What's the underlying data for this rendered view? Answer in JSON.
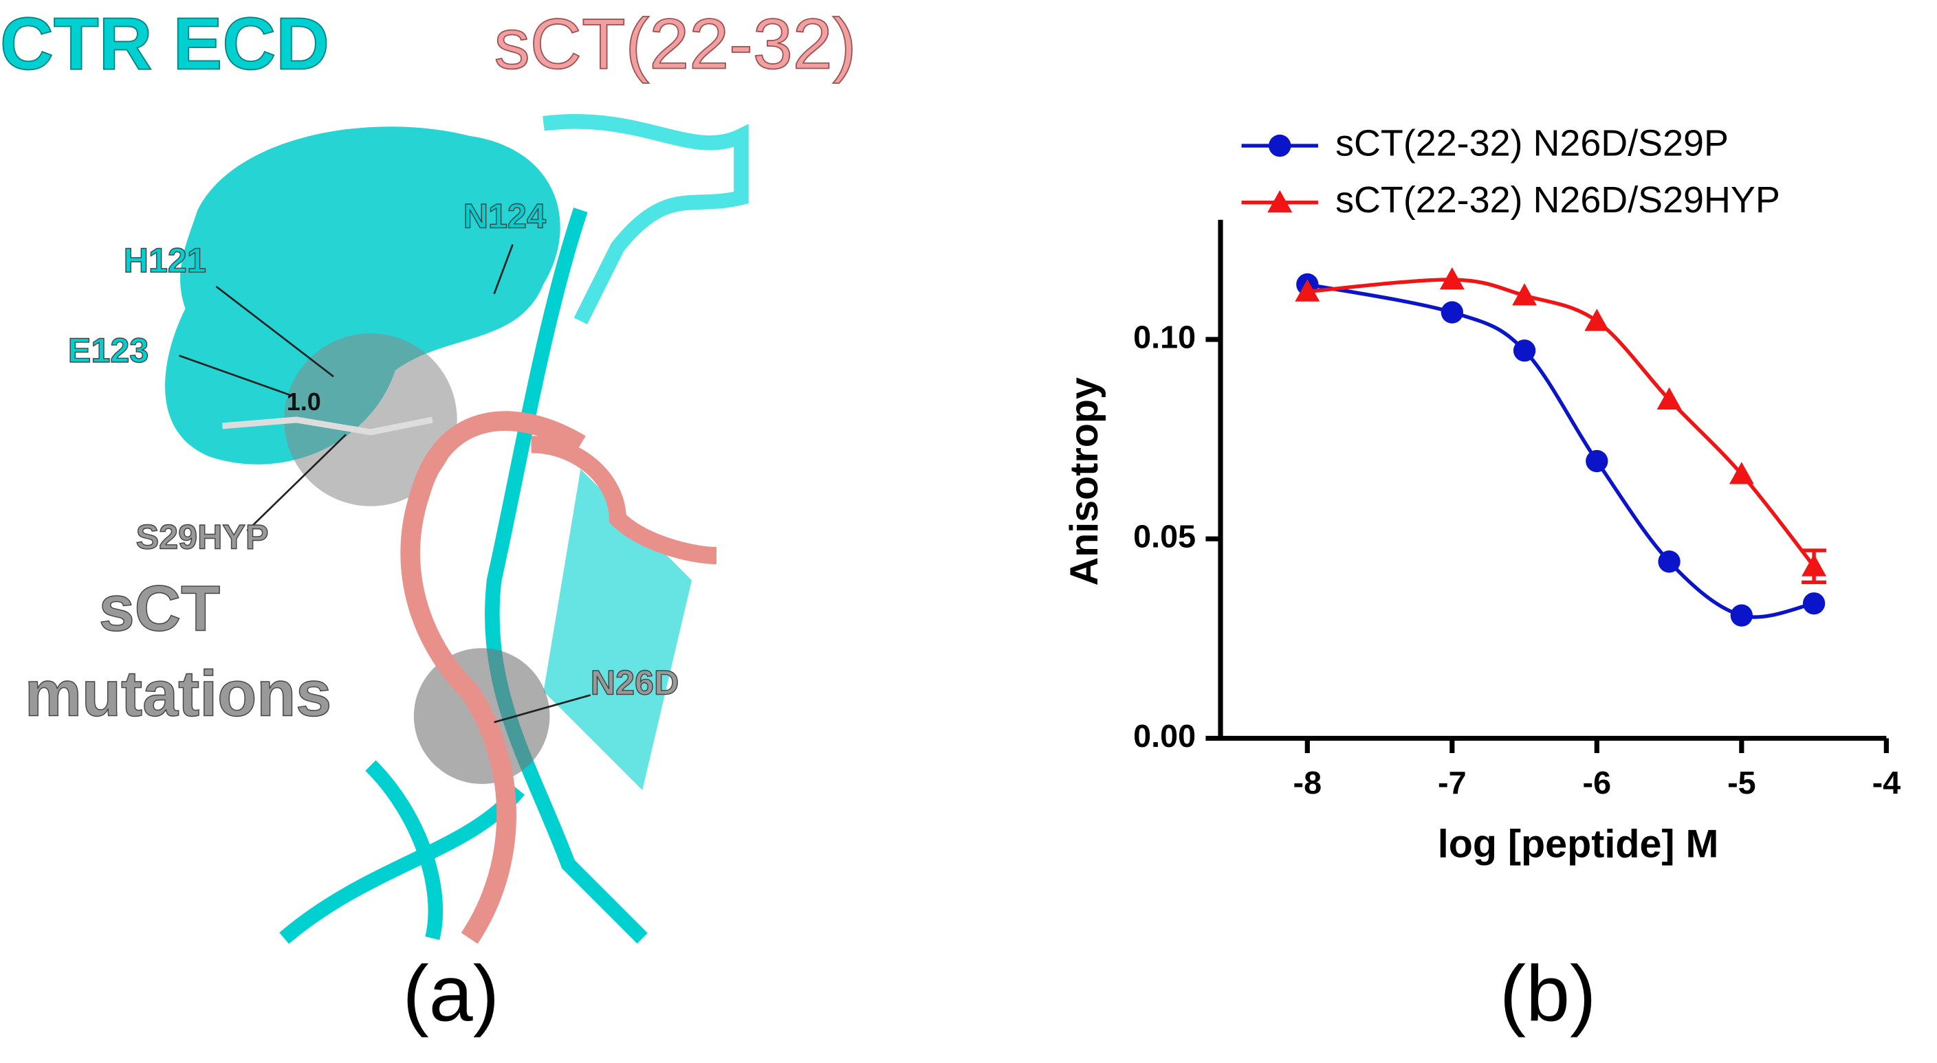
{
  "panel_a": {
    "title_left": "CTR ECD",
    "title_right": "sCT(22-32)",
    "labels": [
      "H121",
      "N124",
      "E123",
      "1.0",
      "S29HYP",
      "sCT",
      "mutations",
      "N26D"
    ],
    "caption": "(a)"
  },
  "chart_data": {
    "type": "line",
    "caption": "(b)",
    "xlabel": "log [peptide] M",
    "ylabel": "Anisotropy",
    "x": [
      -8,
      -7,
      -6.5,
      -6,
      -5.5,
      -5,
      -4.5
    ],
    "series": [
      {
        "name": "sCT(22-32) N26D/S29P",
        "color": "#0a14c8",
        "marker": "circle",
        "values": [
          0.1138,
          0.1068,
          0.0972,
          0.0695,
          0.0443,
          0.0308,
          0.0338
        ]
      },
      {
        "name": "sCT(22-32) N26D/S29HYP",
        "color": "#f01414",
        "marker": "triangle",
        "values": [
          0.112,
          0.115,
          0.111,
          0.1046,
          0.0849,
          0.0662,
          0.0431
        ],
        "errors": [
          null,
          null,
          null,
          null,
          null,
          null,
          0.004
        ]
      }
    ],
    "xlim": [
      -8.6,
      -4
    ],
    "ylim": [
      0,
      0.13
    ],
    "xticks": [
      -8,
      -7,
      -6,
      -5,
      -4
    ],
    "yticks": [
      {
        "value": 0,
        "label": "0.00"
      },
      {
        "value": 0.05,
        "label": "0.05"
      },
      {
        "value": 0.1,
        "label": "0.10"
      }
    ],
    "legend": "top-right"
  }
}
